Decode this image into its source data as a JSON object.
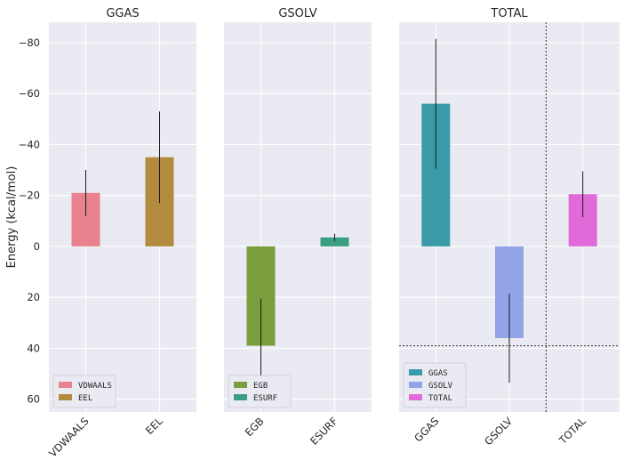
{
  "chart_data": {
    "type": "bar",
    "ylabel": "Energy (kcal/mol)",
    "y_axis_inverted": true,
    "ylim": [
      65,
      -88
    ],
    "yticks": [
      -80,
      -60,
      -40,
      -20,
      0,
      20,
      40,
      60
    ],
    "ytick_labels": [
      "−80",
      "−60",
      "−40",
      "−20",
      "0",
      "20",
      "40",
      "60"
    ],
    "grid": true,
    "panels": [
      {
        "title": "GGAS",
        "categories": [
          "VDWAALS",
          "EEL"
        ],
        "series": [
          {
            "name": "VDWAALS",
            "category": "VDWAALS",
            "value": -21.0,
            "error": 9.0,
            "color": "#e8828f"
          },
          {
            "name": "EEL",
            "category": "EEL",
            "value": -35.0,
            "error": 18.0,
            "color": "#b38b3e"
          }
        ],
        "legend": [
          "VDWAALS",
          "EEL"
        ],
        "legend_position": "lower-left"
      },
      {
        "title": "GSOLV",
        "categories": [
          "EGB",
          "ESURF"
        ],
        "series": [
          {
            "name": "EGB",
            "category": "EGB",
            "value": 39.0,
            "error": 18.5,
            "color": "#7a9e3c"
          },
          {
            "name": "ESURF",
            "category": "ESURF",
            "value": -3.5,
            "error": 1.5,
            "color": "#3a9e82"
          }
        ],
        "legend": [
          "EGB",
          "ESURF"
        ],
        "legend_position": "lower-left"
      },
      {
        "title": "TOTAL",
        "categories": [
          "GGAS",
          "GSOLV",
          "TOTAL"
        ],
        "series": [
          {
            "name": "GGAS",
            "category": "GGAS",
            "value": -56.0,
            "error": 25.5,
            "color": "#3a9aa8"
          },
          {
            "name": "GSOLV",
            "category": "GSOLV",
            "value": 36.0,
            "error": 17.5,
            "color": "#93a3e8"
          },
          {
            "name": "TOTAL",
            "category": "TOTAL",
            "value": -20.5,
            "error": 9.0,
            "color": "#e06bd8"
          }
        ],
        "legend": [
          "GGAS",
          "GSOLV",
          "TOTAL"
        ],
        "legend_position": "lower-left",
        "reference_lines": [
          {
            "orientation": "horizontal",
            "value": 39
          },
          {
            "orientation": "vertical",
            "between": [
              "GSOLV",
              "TOTAL"
            ]
          }
        ]
      }
    ]
  }
}
